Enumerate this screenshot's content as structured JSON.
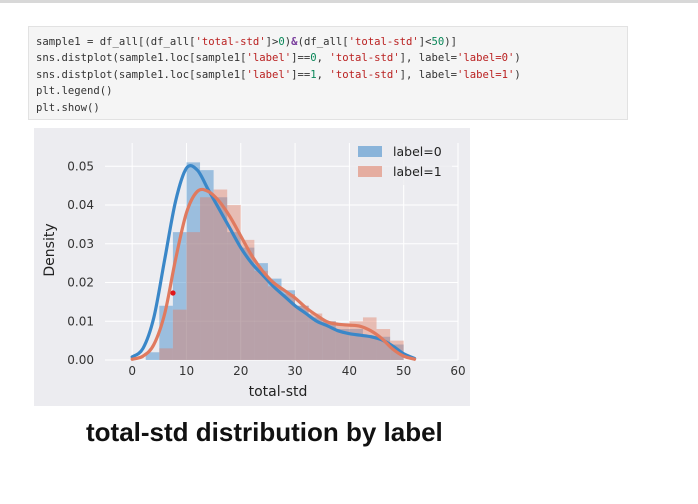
{
  "code_cell": {
    "lines": [
      [
        [
          "sample1 = df_all[(df_all[",
          ""
        ],
        [
          "'total-std'",
          "str"
        ],
        [
          "]>",
          ""
        ],
        [
          "0",
          "num"
        ],
        [
          ")",
          ""
        ],
        [
          "&",
          "op"
        ],
        [
          "(df_all[",
          ""
        ],
        [
          "'total-std'",
          "str"
        ],
        [
          "]<",
          ""
        ],
        [
          "50",
          "num"
        ],
        [
          ")]",
          ""
        ]
      ],
      [
        [
          "sns.distplot(sample1.loc[sample1[",
          ""
        ],
        [
          "'label'",
          "str"
        ],
        [
          "]==",
          ""
        ],
        [
          "0",
          "num"
        ],
        [
          ", ",
          ""
        ],
        [
          "'total-std'",
          "str"
        ],
        [
          "], label=",
          ""
        ],
        [
          "'label=0'",
          "str"
        ],
        [
          ")",
          ""
        ]
      ],
      [
        [
          "sns.distplot(sample1.loc[sample1[",
          ""
        ],
        [
          "'label'",
          "str"
        ],
        [
          "]==",
          ""
        ],
        [
          "1",
          "num"
        ],
        [
          ", ",
          ""
        ],
        [
          "'total-std'",
          "str"
        ],
        [
          "], label=",
          ""
        ],
        [
          "'label=1'",
          "str"
        ],
        [
          ")",
          ""
        ]
      ],
      [
        [
          "plt.legend()",
          ""
        ]
      ],
      [
        [
          "plt.show()",
          ""
        ]
      ]
    ]
  },
  "chart_data": {
    "type": "histogram-kde",
    "xlabel": "total-std",
    "ylabel": "Density",
    "xlim": [
      -5,
      60
    ],
    "ylim": [
      0,
      0.056
    ],
    "xticks": [
      0,
      10,
      20,
      30,
      40,
      50,
      60
    ],
    "yticks": [
      0.0,
      0.01,
      0.02,
      0.03,
      0.04,
      0.05
    ],
    "ytick_labels": [
      "0.00",
      "0.01",
      "0.02",
      "0.03",
      "0.04",
      "0.05"
    ],
    "grid": true,
    "legend_position": "top-right",
    "bin_edges": [
      2.5,
      5,
      7.5,
      10,
      12.5,
      15,
      17.5,
      20,
      22.5,
      25,
      27.5,
      30,
      32.5,
      35,
      37.5,
      40,
      42.5,
      45,
      47.5,
      50
    ],
    "series": [
      {
        "name": "label=0",
        "color": "#3a87c8",
        "hist": [
          0.002,
          0.014,
          0.033,
          0.051,
          0.049,
          0.042,
          0.033,
          0.029,
          0.025,
          0.021,
          0.018,
          0.014,
          0.011,
          0.01,
          0.008,
          0.008,
          0.006,
          0.006,
          0.004
        ],
        "kde_x": [
          0,
          2,
          4,
          6,
          8,
          10,
          12,
          14,
          16,
          18,
          20,
          22,
          24,
          26,
          28,
          30,
          32,
          34,
          36,
          38,
          40,
          42,
          44,
          46,
          48,
          50,
          52
        ],
        "kde_y": [
          0.0008,
          0.003,
          0.011,
          0.026,
          0.041,
          0.0495,
          0.049,
          0.044,
          0.039,
          0.034,
          0.029,
          0.025,
          0.022,
          0.019,
          0.0165,
          0.014,
          0.012,
          0.01,
          0.0088,
          0.0075,
          0.0068,
          0.0064,
          0.006,
          0.0052,
          0.0036,
          0.0016,
          0.0004
        ]
      },
      {
        "name": "label=1",
        "color": "#e07a5f",
        "hist": [
          0.0,
          0.003,
          0.013,
          0.033,
          0.042,
          0.044,
          0.04,
          0.031,
          0.023,
          0.019,
          0.017,
          0.014,
          0.012,
          0.01,
          0.009,
          0.01,
          0.011,
          0.008,
          0.005
        ],
        "kde_x": [
          0,
          2,
          4,
          6,
          8,
          10,
          12,
          14,
          16,
          18,
          20,
          22,
          24,
          26,
          28,
          30,
          32,
          34,
          36,
          38,
          40,
          42,
          44,
          46,
          48,
          50,
          52
        ],
        "kde_y": [
          0.0002,
          0.001,
          0.004,
          0.012,
          0.026,
          0.038,
          0.0435,
          0.0435,
          0.041,
          0.037,
          0.032,
          0.027,
          0.023,
          0.02,
          0.018,
          0.016,
          0.0135,
          0.0115,
          0.0098,
          0.0092,
          0.009,
          0.0087,
          0.0075,
          0.0055,
          0.0028,
          0.001,
          0.0002
        ]
      }
    ]
  },
  "caption": "total-std distribution by label",
  "colors": {
    "plot_bg": "#ececf0",
    "grid": "#ffffff",
    "marker": "#e0161b"
  }
}
